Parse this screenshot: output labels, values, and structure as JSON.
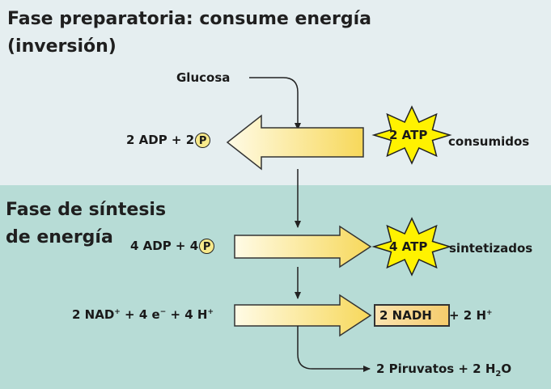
{
  "headings": {
    "preparatory_line1": "Fase preparatoria: consume energía",
    "preparatory_line2": "(inversión)",
    "synthesis_line1": "Fase de síntesis",
    "synthesis_line2": "de energía"
  },
  "labels": {
    "glucose": "Glucosa",
    "adp_out_prefix": "2 ADP + 2",
    "phosphate_symbol": "P",
    "atp_consumed": "2 ATP",
    "consumed": "consumidos",
    "adp_in_prefix": "4 ADP + 4",
    "atp_made": "4 ATP",
    "synthesized": "sintetizados",
    "nad_count": "2 NAD",
    "plus_sign": "+",
    "electrons_mid": " + 4 e",
    "minus_sign": "−",
    "protons_mid": " + 4 H",
    "nadh": "2 NADH",
    "nadh_protons": "+ 2 H",
    "pyruvate_prefix": "2 Piruvatos + 2 H",
    "water_sub": "2",
    "water_suffix": "O"
  },
  "colors": {
    "top_panel": "#e5eef0",
    "bottom_panel": "#b7dcd6",
    "star_fill": "#fff200",
    "arrow_light": "#fffbe6",
    "arrow_dark": "#f7d85a"
  }
}
